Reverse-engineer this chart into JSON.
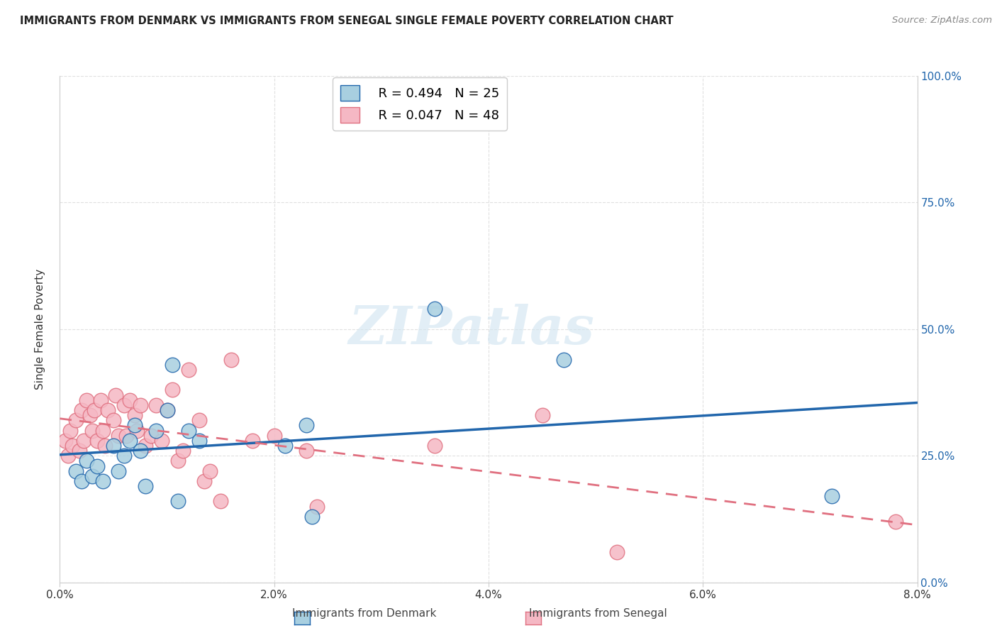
{
  "title": "IMMIGRANTS FROM DENMARK VS IMMIGRANTS FROM SENEGAL SINGLE FEMALE POVERTY CORRELATION CHART",
  "source": "Source: ZipAtlas.com",
  "ylabel": "Single Female Poverty",
  "xlim": [
    0.0,
    8.0
  ],
  "ylim": [
    0.0,
    100.0
  ],
  "watermark": "ZIPatlas",
  "denmark_R": 0.494,
  "denmark_N": 25,
  "senegal_R": 0.047,
  "senegal_N": 48,
  "denmark_color": "#a8cfe0",
  "senegal_color": "#f5b8c4",
  "denmark_line_color": "#2166AC",
  "senegal_line_color": "#e07080",
  "denmark_scatter_x": [
    0.15,
    0.2,
    0.25,
    0.3,
    0.35,
    0.4,
    0.5,
    0.55,
    0.6,
    0.65,
    0.7,
    0.75,
    0.8,
    0.9,
    1.0,
    1.05,
    1.1,
    1.2,
    1.3,
    2.1,
    2.3,
    2.35,
    3.5,
    4.7,
    7.2
  ],
  "denmark_scatter_y": [
    22,
    20,
    24,
    21,
    23,
    20,
    27,
    22,
    25,
    28,
    31,
    26,
    19,
    30,
    34,
    43,
    16,
    30,
    28,
    27,
    31,
    13,
    54,
    44,
    17
  ],
  "senegal_scatter_x": [
    0.05,
    0.08,
    0.1,
    0.12,
    0.15,
    0.18,
    0.2,
    0.22,
    0.25,
    0.28,
    0.3,
    0.32,
    0.35,
    0.38,
    0.4,
    0.42,
    0.45,
    0.5,
    0.52,
    0.55,
    0.6,
    0.62,
    0.65,
    0.7,
    0.72,
    0.75,
    0.8,
    0.85,
    0.9,
    0.95,
    1.0,
    1.05,
    1.1,
    1.15,
    1.2,
    1.3,
    1.35,
    1.4,
    1.5,
    1.6,
    1.8,
    2.0,
    2.3,
    2.4,
    3.5,
    4.5,
    5.2,
    7.8
  ],
  "senegal_scatter_y": [
    28,
    25,
    30,
    27,
    32,
    26,
    34,
    28,
    36,
    33,
    30,
    34,
    28,
    36,
    30,
    27,
    34,
    32,
    37,
    29,
    35,
    29,
    36,
    33,
    30,
    35,
    27,
    29,
    35,
    28,
    34,
    38,
    24,
    26,
    42,
    32,
    20,
    22,
    16,
    44,
    28,
    29,
    26,
    15,
    27,
    33,
    6,
    12
  ],
  "background_color": "#ffffff",
  "grid_color": "#e0e0e0"
}
